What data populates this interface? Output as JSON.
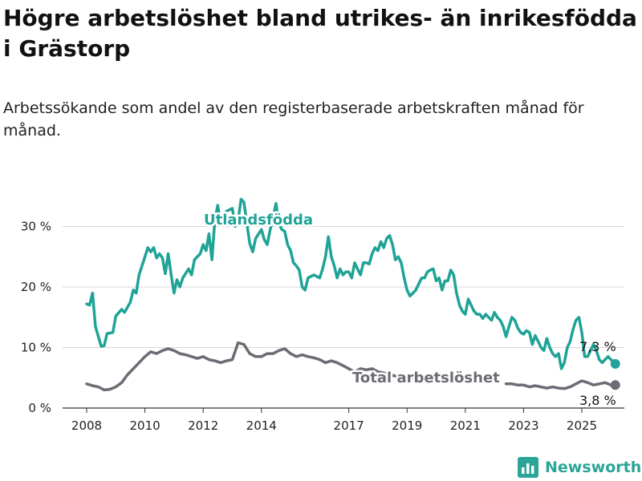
{
  "title": "Högre arbetslöshet bland utrikes- än inrikesfödda i Grästorp",
  "subtitle": "Arbetssökande som andel av den registerbaserade arbetskraften månad för månad.",
  "brand": {
    "name": "Newsworthy",
    "color": "#2aa597",
    "icon": "bar-chart-logo-icon"
  },
  "chart_data": {
    "type": "line",
    "title": "Högre arbetslöshet bland utrikes- än inrikesfödda i Grästorp",
    "subtitle": "Arbetssökande som andel av den registerbaserade arbetskraften månad för månad.",
    "xlabel": "",
    "ylabel": "",
    "xlim": [
      2007.5,
      2026.5
    ],
    "ylim": [
      0,
      35
    ],
    "grid": true,
    "legend": "inline labels",
    "x_ticks": [
      {
        "value": 2008,
        "label": "2008"
      },
      {
        "value": 2010,
        "label": "2010"
      },
      {
        "value": 2012,
        "label": "2012"
      },
      {
        "value": 2014,
        "label": "2014"
      },
      {
        "value": 2017,
        "label": "2017"
      },
      {
        "value": 2019,
        "label": "2019"
      },
      {
        "value": 2021,
        "label": "2021"
      },
      {
        "value": 2023,
        "label": "2023"
      },
      {
        "value": 2025,
        "label": "2025"
      }
    ],
    "y_ticks": [
      {
        "value": 0,
        "label": "0 %"
      },
      {
        "value": 10,
        "label": "10 %"
      },
      {
        "value": 20,
        "label": "20 %"
      },
      {
        "value": 30,
        "label": "30 %"
      }
    ],
    "series": [
      {
        "name": "Utlandsfödda",
        "color": "#1fa396",
        "end_label": "7,3 %",
        "points": [
          [
            2008.0,
            17.2
          ],
          [
            2008.1,
            17.0
          ],
          [
            2008.2,
            19.0
          ],
          [
            2008.3,
            13.5
          ],
          [
            2008.5,
            10.2
          ],
          [
            2008.6,
            10.3
          ],
          [
            2008.7,
            12.3
          ],
          [
            2008.9,
            12.5
          ],
          [
            2009.0,
            15.2
          ],
          [
            2009.2,
            16.3
          ],
          [
            2009.3,
            15.8
          ],
          [
            2009.5,
            17.5
          ],
          [
            2009.6,
            19.5
          ],
          [
            2009.7,
            19.0
          ],
          [
            2009.8,
            22.0
          ],
          [
            2010.0,
            25.0
          ],
          [
            2010.1,
            26.5
          ],
          [
            2010.2,
            25.8
          ],
          [
            2010.3,
            26.5
          ],
          [
            2010.4,
            24.8
          ],
          [
            2010.5,
            25.5
          ],
          [
            2010.6,
            24.8
          ],
          [
            2010.7,
            22.2
          ],
          [
            2010.8,
            25.5
          ],
          [
            2010.9,
            22.0
          ],
          [
            2011.0,
            19.0
          ],
          [
            2011.1,
            21.2
          ],
          [
            2011.2,
            20.0
          ],
          [
            2011.3,
            21.5
          ],
          [
            2011.5,
            23.0
          ],
          [
            2011.6,
            22.0
          ],
          [
            2011.7,
            24.5
          ],
          [
            2011.9,
            25.5
          ],
          [
            2012.0,
            27.0
          ],
          [
            2012.1,
            26.0
          ],
          [
            2012.2,
            28.8
          ],
          [
            2012.3,
            24.5
          ],
          [
            2012.4,
            31.0
          ],
          [
            2012.5,
            33.5
          ],
          [
            2012.6,
            30.5
          ],
          [
            2012.8,
            32.5
          ],
          [
            2013.0,
            33.0
          ],
          [
            2013.1,
            30.0
          ],
          [
            2013.2,
            31.0
          ],
          [
            2013.3,
            34.5
          ],
          [
            2013.4,
            34.0
          ],
          [
            2013.5,
            30.5
          ],
          [
            2013.6,
            27.2
          ],
          [
            2013.7,
            25.8
          ],
          [
            2013.8,
            28.0
          ],
          [
            2014.0,
            29.5
          ],
          [
            2014.1,
            27.8
          ],
          [
            2014.2,
            27.0
          ],
          [
            2014.3,
            29.5
          ],
          [
            2014.4,
            31.5
          ],
          [
            2014.5,
            33.8
          ],
          [
            2014.6,
            30.5
          ],
          [
            2014.7,
            29.5
          ],
          [
            2014.8,
            29.2
          ],
          [
            2014.9,
            27.0
          ],
          [
            2015.0,
            26.0
          ],
          [
            2015.1,
            24.0
          ],
          [
            2015.2,
            23.5
          ],
          [
            2015.3,
            22.8
          ],
          [
            2015.4,
            20.0
          ],
          [
            2015.5,
            19.5
          ],
          [
            2015.6,
            21.5
          ],
          [
            2015.8,
            22.0
          ],
          [
            2016.0,
            21.5
          ],
          [
            2016.1,
            23.0
          ],
          [
            2016.2,
            25.0
          ],
          [
            2016.3,
            28.3
          ],
          [
            2016.4,
            25.0
          ],
          [
            2016.5,
            23.5
          ],
          [
            2016.6,
            21.5
          ],
          [
            2016.7,
            23.0
          ],
          [
            2016.8,
            22.0
          ],
          [
            2016.9,
            22.5
          ],
          [
            2017.0,
            22.5
          ],
          [
            2017.1,
            21.5
          ],
          [
            2017.2,
            24.0
          ],
          [
            2017.3,
            23.0
          ],
          [
            2017.4,
            22.0
          ],
          [
            2017.5,
            24.0
          ],
          [
            2017.6,
            24.0
          ],
          [
            2017.7,
            23.8
          ],
          [
            2017.8,
            25.5
          ],
          [
            2017.9,
            26.5
          ],
          [
            2018.0,
            26.0
          ],
          [
            2018.1,
            27.5
          ],
          [
            2018.2,
            26.5
          ],
          [
            2018.3,
            28.0
          ],
          [
            2018.4,
            28.5
          ],
          [
            2018.5,
            27.0
          ],
          [
            2018.6,
            24.5
          ],
          [
            2018.7,
            25.0
          ],
          [
            2018.8,
            24.0
          ],
          [
            2018.9,
            21.5
          ],
          [
            2019.0,
            19.5
          ],
          [
            2019.1,
            18.5
          ],
          [
            2019.2,
            19.0
          ],
          [
            2019.3,
            19.5
          ],
          [
            2019.4,
            20.5
          ],
          [
            2019.5,
            21.5
          ],
          [
            2019.6,
            21.5
          ],
          [
            2019.7,
            22.5
          ],
          [
            2019.8,
            22.8
          ],
          [
            2019.9,
            23.0
          ],
          [
            2020.0,
            21.0
          ],
          [
            2020.1,
            21.5
          ],
          [
            2020.2,
            19.5
          ],
          [
            2020.3,
            21.0
          ],
          [
            2020.4,
            21.0
          ],
          [
            2020.5,
            22.8
          ],
          [
            2020.6,
            22.0
          ],
          [
            2020.7,
            19.0
          ],
          [
            2020.8,
            17.0
          ],
          [
            2020.9,
            16.0
          ],
          [
            2021.0,
            15.5
          ],
          [
            2021.1,
            18.0
          ],
          [
            2021.2,
            17.0
          ],
          [
            2021.3,
            16.0
          ],
          [
            2021.4,
            15.5
          ],
          [
            2021.5,
            15.5
          ],
          [
            2021.6,
            14.8
          ],
          [
            2021.7,
            15.5
          ],
          [
            2021.8,
            15.0
          ],
          [
            2021.9,
            14.5
          ],
          [
            2022.0,
            15.8
          ],
          [
            2022.1,
            15.0
          ],
          [
            2022.2,
            14.5
          ],
          [
            2022.3,
            13.5
          ],
          [
            2022.4,
            11.8
          ],
          [
            2022.5,
            13.5
          ],
          [
            2022.6,
            15.0
          ],
          [
            2022.7,
            14.5
          ],
          [
            2022.8,
            13.2
          ],
          [
            2022.9,
            12.5
          ],
          [
            2023.0,
            12.2
          ],
          [
            2023.1,
            12.8
          ],
          [
            2023.2,
            12.5
          ],
          [
            2023.3,
            10.5
          ],
          [
            2023.4,
            12.0
          ],
          [
            2023.5,
            11.0
          ],
          [
            2023.6,
            10.0
          ],
          [
            2023.7,
            9.5
          ],
          [
            2023.8,
            11.5
          ],
          [
            2023.9,
            10.0
          ],
          [
            2024.0,
            9.0
          ],
          [
            2024.1,
            8.5
          ],
          [
            2024.2,
            9.0
          ],
          [
            2024.3,
            6.5
          ],
          [
            2024.4,
            7.5
          ],
          [
            2024.5,
            10.0
          ],
          [
            2024.6,
            11.0
          ],
          [
            2024.7,
            13.0
          ],
          [
            2024.8,
            14.5
          ],
          [
            2024.9,
            15.0
          ],
          [
            2025.0,
            12.5
          ],
          [
            2025.1,
            8.5
          ],
          [
            2025.2,
            8.5
          ],
          [
            2025.3,
            9.5
          ],
          [
            2025.4,
            10.5
          ],
          [
            2025.5,
            9.5
          ],
          [
            2025.6,
            8.0
          ],
          [
            2025.7,
            7.5
          ],
          [
            2025.8,
            8.0
          ],
          [
            2025.9,
            8.5
          ],
          [
            2026.0,
            8.0
          ],
          [
            2026.1,
            7.5
          ],
          [
            2026.15,
            7.3
          ]
        ]
      },
      {
        "name": "Total arbetslöshet",
        "color": "#6d6b74",
        "end_label": "3,8 %",
        "points": [
          [
            2008.0,
            4.0
          ],
          [
            2008.2,
            3.7
          ],
          [
            2008.4,
            3.5
          ],
          [
            2008.6,
            3.0
          ],
          [
            2008.8,
            3.1
          ],
          [
            2009.0,
            3.5
          ],
          [
            2009.2,
            4.2
          ],
          [
            2009.4,
            5.5
          ],
          [
            2009.6,
            6.5
          ],
          [
            2009.8,
            7.5
          ],
          [
            2010.0,
            8.5
          ],
          [
            2010.2,
            9.3
          ],
          [
            2010.4,
            9.0
          ],
          [
            2010.6,
            9.5
          ],
          [
            2010.8,
            9.8
          ],
          [
            2011.0,
            9.5
          ],
          [
            2011.2,
            9.0
          ],
          [
            2011.4,
            8.8
          ],
          [
            2011.6,
            8.5
          ],
          [
            2011.8,
            8.2
          ],
          [
            2012.0,
            8.5
          ],
          [
            2012.2,
            8.0
          ],
          [
            2012.4,
            7.8
          ],
          [
            2012.6,
            7.5
          ],
          [
            2012.8,
            7.8
          ],
          [
            2013.0,
            8.0
          ],
          [
            2013.2,
            10.8
          ],
          [
            2013.4,
            10.5
          ],
          [
            2013.6,
            9.0
          ],
          [
            2013.8,
            8.5
          ],
          [
            2014.0,
            8.5
          ],
          [
            2014.2,
            9.0
          ],
          [
            2014.4,
            9.0
          ],
          [
            2014.6,
            9.5
          ],
          [
            2014.8,
            9.8
          ],
          [
            2015.0,
            9.0
          ],
          [
            2015.2,
            8.5
          ],
          [
            2015.4,
            8.8
          ],
          [
            2015.6,
            8.5
          ],
          [
            2015.8,
            8.3
          ],
          [
            2016.0,
            8.0
          ],
          [
            2016.2,
            7.5
          ],
          [
            2016.4,
            7.8
          ],
          [
            2016.6,
            7.5
          ],
          [
            2016.8,
            7.0
          ],
          [
            2017.0,
            6.5
          ],
          [
            2017.2,
            6.0
          ],
          [
            2017.4,
            6.5
          ],
          [
            2017.6,
            6.3
          ],
          [
            2017.8,
            6.5
          ],
          [
            2018.0,
            6.0
          ],
          [
            2018.2,
            5.8
          ],
          [
            2018.4,
            5.5
          ],
          [
            2018.6,
            5.3
          ],
          [
            2018.8,
            5.2
          ],
          [
            2019.0,
            5.0
          ],
          [
            2019.2,
            5.0
          ],
          [
            2019.4,
            5.0
          ]
        ],
        "points_tail": [
          [
            2022.4,
            4.0
          ],
          [
            2022.6,
            4.0
          ],
          [
            2022.8,
            3.8
          ],
          [
            2023.0,
            3.8
          ],
          [
            2023.2,
            3.5
          ],
          [
            2023.4,
            3.7
          ],
          [
            2023.6,
            3.5
          ],
          [
            2023.8,
            3.3
          ],
          [
            2024.0,
            3.5
          ],
          [
            2024.2,
            3.3
          ],
          [
            2024.4,
            3.2
          ],
          [
            2024.6,
            3.5
          ],
          [
            2024.8,
            4.0
          ],
          [
            2025.0,
            4.5
          ],
          [
            2025.2,
            4.2
          ],
          [
            2025.4,
            3.8
          ],
          [
            2025.6,
            4.0
          ],
          [
            2025.8,
            4.2
          ],
          [
            2026.0,
            3.8
          ],
          [
            2026.15,
            3.8
          ]
        ]
      }
    ]
  }
}
